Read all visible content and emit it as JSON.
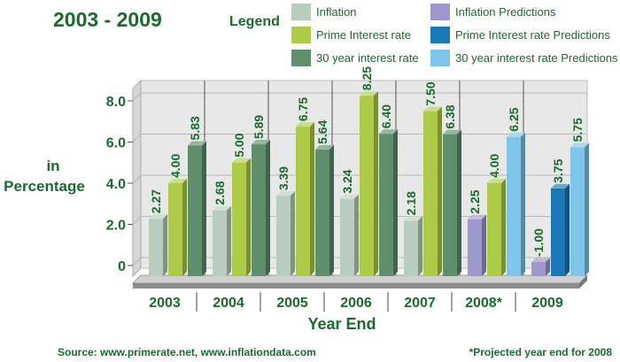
{
  "colors": {
    "green_text": "#1a6b2c",
    "inflation": "#b9cdbf",
    "prime": "#aecb48",
    "thirty": "#5f8f6c",
    "inflation_pred": "#9e97cc",
    "prime_pred": "#1a78b6",
    "thirty_pred": "#7fc5e9",
    "wall": "#e8e8e8",
    "grid": "#b8b8b8"
  },
  "legend": {
    "label": "Legend",
    "items": [
      {
        "name": "Inflation",
        "color_key": "inflation"
      },
      {
        "name": "Inflation Predictions",
        "color_key": "inflation_pred"
      },
      {
        "name": "Prime Interest rate",
        "color_key": "prime"
      },
      {
        "name": "Prime Interest rate Predictions",
        "color_key": "prime_pred"
      },
      {
        "name": "30 year interest rate",
        "color_key": "thirty"
      },
      {
        "name": "30 year interest rate Predictions",
        "color_key": "thirty_pred"
      }
    ]
  },
  "source_note": "Source: www.primerate.net, www.inflationdata.com",
  "footnote": "*Projected year end for 2008",
  "chart_data": {
    "type": "bar",
    "title": "2003 - 2009",
    "xlabel": "Year End",
    "ylabel": "in Percentage",
    "ylabel_lines": [
      "in",
      "Percentage"
    ],
    "ylim": [
      0,
      8.6
    ],
    "yticks": [
      {
        "value": 0,
        "label": "0"
      },
      {
        "value": 2,
        "label": "2.0"
      },
      {
        "value": 4,
        "label": "4.0"
      },
      {
        "value": 6,
        "label": "6.0"
      },
      {
        "value": 8,
        "label": "8.0"
      }
    ],
    "categories": [
      "2003",
      "2004",
      "2005",
      "2006",
      "2007",
      "2008*",
      "2009"
    ],
    "grid": true,
    "series": [
      {
        "name": "Inflation",
        "values": [
          2.27,
          2.68,
          3.39,
          3.24,
          2.18,
          null,
          null
        ]
      },
      {
        "name": "Prime Interest rate",
        "values": [
          4.0,
          5.0,
          6.75,
          8.25,
          7.5,
          4.0,
          null
        ]
      },
      {
        "name": "30 year interest rate",
        "values": [
          5.83,
          5.89,
          5.64,
          6.4,
          6.38,
          null,
          null
        ]
      },
      {
        "name": "Inflation Predictions",
        "values": [
          null,
          null,
          null,
          null,
          null,
          2.25,
          -1.0
        ]
      },
      {
        "name": "Prime Interest rate Predictions",
        "values": [
          null,
          null,
          null,
          null,
          null,
          null,
          3.75
        ]
      },
      {
        "name": "30 year interest rate Predictions",
        "values": [
          null,
          null,
          null,
          null,
          null,
          6.25,
          5.75
        ]
      }
    ],
    "data_labels": [
      [
        "2.27",
        "4.00",
        "5.83"
      ],
      [
        "2.68",
        "5.00",
        "5.89"
      ],
      [
        "3.39",
        "6.75",
        "5.64"
      ],
      [
        "3.24",
        "8.25",
        "6.40"
      ],
      [
        "2.18",
        "7.50",
        "6.38"
      ],
      [
        "2.25",
        "4.00",
        "6.25"
      ],
      [
        "-1.00",
        "3.75",
        "5.75"
      ]
    ]
  }
}
